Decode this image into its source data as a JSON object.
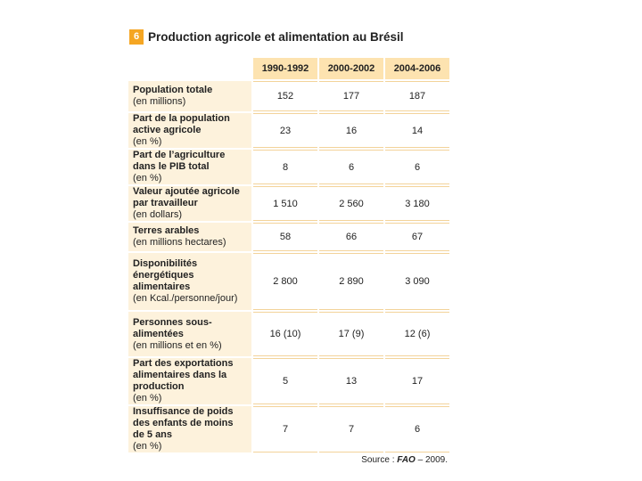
{
  "title": {
    "badge": "6",
    "text": "Production agricole et alimentation au Brésil"
  },
  "table": {
    "columns": [
      "1990-1992",
      "2000-2002",
      "2004-2006"
    ],
    "rows": [
      {
        "label": "Population totale",
        "note": "(en millions)",
        "values": [
          "152",
          "177",
          "187"
        ]
      },
      {
        "label": "Part de la population active agricole",
        "note": "(en %)",
        "values": [
          "23",
          "16",
          "14"
        ]
      },
      {
        "label": "Part de l’agriculture dans le PIB total",
        "note": "(en %)",
        "values": [
          "8",
          "6",
          "6"
        ]
      },
      {
        "label": "Valeur ajoutée agricole par travailleur",
        "note": "(en dollars)",
        "values": [
          "1 510",
          "2 560",
          "3 180"
        ]
      },
      {
        "label": "Terres arables",
        "note": "(en millions hectares)",
        "values": [
          "58",
          "66",
          "67"
        ]
      },
      {
        "label": "Disponibilités énergétiques alimentaires",
        "note": "(en Kcal./personne/jour)",
        "values": [
          "2 800",
          "2 890",
          "3 090"
        ]
      },
      {
        "label": "Personnes sous-alimentées",
        "note": "(en millions et en %)",
        "values": [
          "16 (10)",
          "17 (9)",
          "12 (6)"
        ]
      },
      {
        "label": "Part des exportations alimentaires dans la production",
        "note": "(en %)",
        "values": [
          "5",
          "13",
          "17"
        ]
      },
      {
        "label": "Insuffisance de poids des enfants de moins de 5 ans",
        "note": "(en %)",
        "values": [
          "7",
          "7",
          "6"
        ]
      }
    ]
  },
  "source": {
    "prefix": "Source :",
    "name": "FAO",
    "year": "– 2009."
  }
}
